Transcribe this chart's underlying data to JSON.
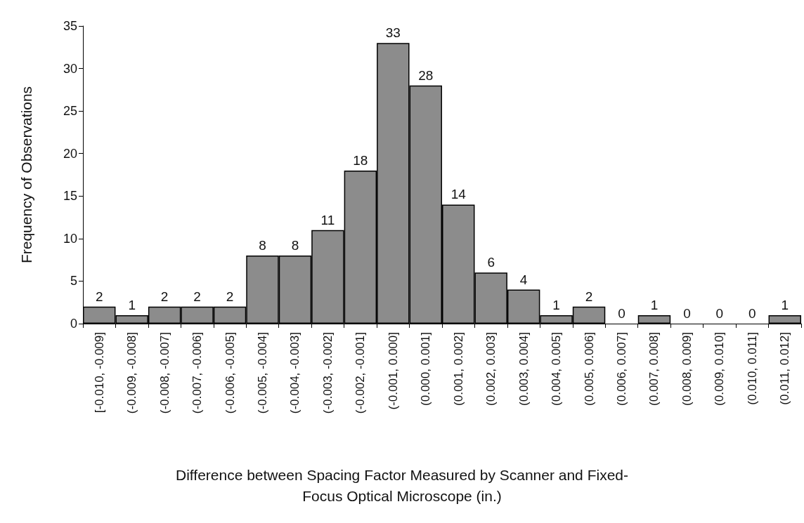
{
  "chart_data": {
    "type": "bar",
    "categories": [
      "[-0.010, -0.009]",
      "(-0.009, -0.008]",
      "(-0.008, -0.007]",
      "(-0.007, -0.006]",
      "(-0.006, -0.005]",
      "(-0.005, -0.004]",
      "(-0.004, -0.003]",
      "(-0.003, -0.002]",
      "(-0.002, -0.001]",
      "(-0.001, 0.000]",
      "(0.000, 0.001]",
      "(0.001, 0.002]",
      "(0.002, 0.003]",
      "(0.003, 0.004]",
      "(0.004, 0.005]",
      "(0.005, 0.006]",
      "(0.006, 0.007]",
      "(0.007, 0.008]",
      "(0.008, 0.009]",
      "(0.009, 0.010]",
      "(0.010, 0.011]",
      "(0.011, 0.012]"
    ],
    "values": [
      2,
      1,
      2,
      2,
      2,
      8,
      8,
      11,
      18,
      33,
      28,
      14,
      6,
      4,
      1,
      2,
      0,
      1,
      0,
      0,
      0,
      1
    ],
    "color": "#8c8c8c",
    "xlabel": "Difference between Spacing Factor Measured by Scanner and Fixed-Focus Optical Microscope (in.)",
    "ylabel": "Frequency of Observations",
    "ylim": [
      0,
      35
    ],
    "yticks": [
      0,
      5,
      10,
      15,
      20,
      25,
      30,
      35
    ],
    "data_labels": true,
    "grid": false
  }
}
